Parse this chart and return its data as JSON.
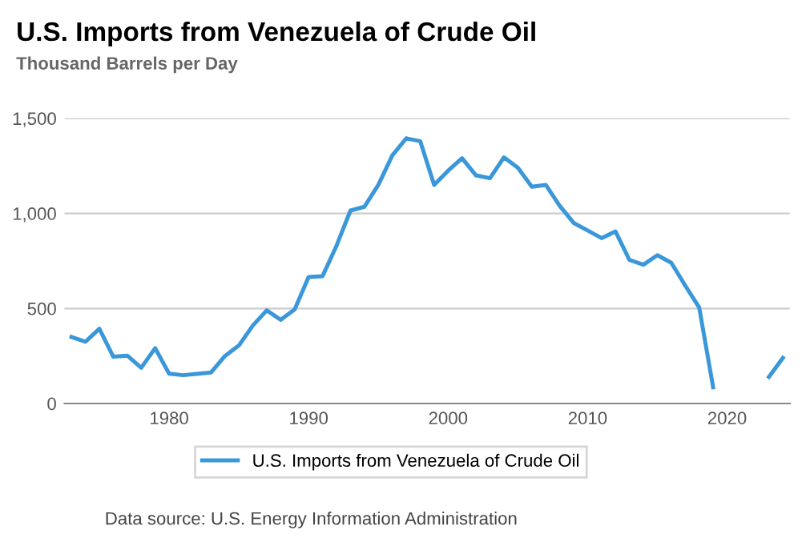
{
  "chart_data": {
    "type": "line",
    "title": "U.S. Imports from Venezuela of Crude Oil",
    "ylabel": "Thousand Barrels per Day",
    "x": [
      1973,
      1974,
      1975,
      1976,
      1977,
      1978,
      1979,
      1980,
      1981,
      1982,
      1983,
      1984,
      1985,
      1986,
      1987,
      1988,
      1989,
      1990,
      1991,
      1992,
      1993,
      1994,
      1995,
      1996,
      1997,
      1998,
      1999,
      2000,
      2001,
      2002,
      2003,
      2004,
      2005,
      2006,
      2007,
      2008,
      2009,
      2010,
      2011,
      2012,
      2013,
      2014,
      2015,
      2016,
      2017,
      2018,
      2019,
      2020,
      2021,
      2022,
      2023,
      2024
    ],
    "series": [
      {
        "name": "U.S. Imports from Venezuela of Crude Oil",
        "color": "#3a97d9",
        "values": [
          350,
          325,
          393,
          246,
          252,
          188,
          291,
          157,
          149,
          156,
          163,
          250,
          305,
          410,
          490,
          440,
          495,
          665,
          670,
          830,
          1015,
          1035,
          1150,
          1305,
          1395,
          1380,
          1150,
          1225,
          1290,
          1200,
          1185,
          1295,
          1240,
          1140,
          1150,
          1040,
          950,
          910,
          870,
          905,
          755,
          730,
          780,
          740,
          620,
          505,
          85,
          null,
          null,
          null,
          140,
          240
        ]
      }
    ],
    "xlim": [
      1972.5,
      2024.5
    ],
    "xticks": [
      1980,
      1990,
      2000,
      2010,
      2020
    ],
    "ylim": [
      0,
      1500
    ],
    "yticks": [
      0,
      {
        "value": 500,
        "label": "500"
      },
      {
        "value": 1000,
        "label": "1,000"
      },
      {
        "value": 1500,
        "label": "1,500"
      }
    ],
    "grid": "y",
    "legend": "bottom",
    "marker": "none",
    "line_style": "solid",
    "annotations": [
      "Data source: U.S. Energy Information Administration"
    ]
  }
}
